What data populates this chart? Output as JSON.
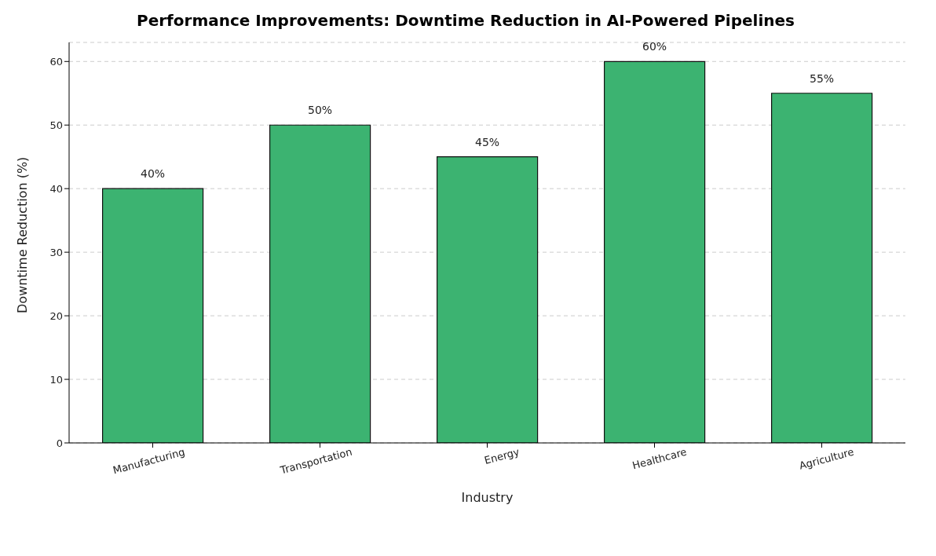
{
  "chart_data": {
    "type": "bar",
    "title": "Performance Improvements: Downtime Reduction in AI-Powered Pipelines",
    "xlabel": "Industry",
    "ylabel": "Downtime Reduction (%)",
    "categories": [
      "Manufacturing",
      "Transportation",
      "Energy",
      "Healthcare",
      "Agriculture"
    ],
    "values": [
      40,
      50,
      45,
      60,
      55
    ],
    "value_labels": [
      "40%",
      "50%",
      "45%",
      "60%",
      "55%"
    ],
    "color": "#3cb371",
    "ylim": [
      0,
      63
    ],
    "yticks": [
      0,
      10,
      20,
      30,
      40,
      50,
      60
    ],
    "grid": "y"
  }
}
